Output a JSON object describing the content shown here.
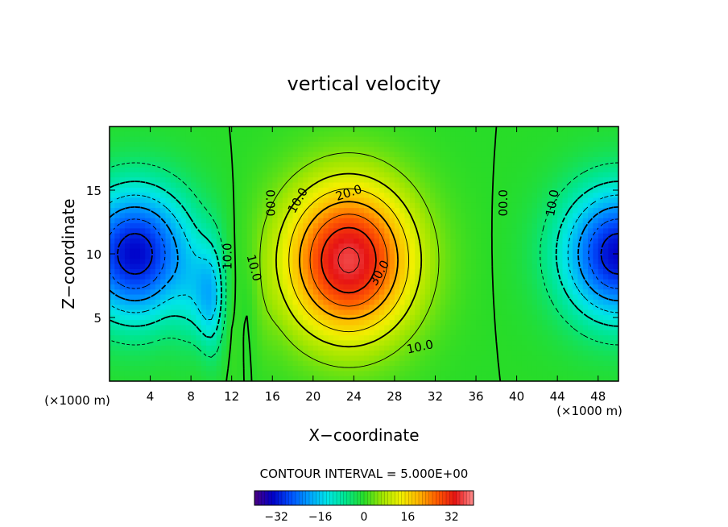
{
  "chart_data": {
    "type": "heatmap",
    "title": "vertical velocity",
    "xlabel": "X−coordinate",
    "ylabel": "Z−coordinate",
    "x_unit_left": "(×1000 m)",
    "x_unit_right": "(×1000 m)",
    "xlim": [
      0,
      50
    ],
    "ylim": [
      0,
      20
    ],
    "x_ticks": [
      4,
      8,
      12,
      16,
      20,
      24,
      28,
      32,
      36,
      40,
      44,
      48
    ],
    "y_ticks": [
      5,
      10,
      15
    ],
    "contour_interval_text": "CONTOUR INTERVAL = 5.000E+00",
    "colorbar": {
      "range": [
        -40,
        40
      ],
      "ticks": [
        -32,
        -16,
        0,
        16,
        32
      ],
      "colors": [
        "#4b0082",
        "#0000c8",
        "#0050ff",
        "#00a0ff",
        "#00e6e6",
        "#00e68c",
        "#28dc28",
        "#a0e600",
        "#f0f000",
        "#ffb400",
        "#ff5a00",
        "#e61414",
        "#ff8c8c"
      ]
    },
    "features": [
      {
        "kind": "updraft",
        "x": 23.5,
        "z": 9.5,
        "peak": 36
      },
      {
        "kind": "downdraft",
        "x": 2.5,
        "z": 10,
        "peak": -33
      },
      {
        "kind": "downdraft",
        "x": 50,
        "z": 10,
        "peak": -33
      },
      {
        "kind": "downdraft",
        "x": 9.5,
        "z": 6.5,
        "peak": -14
      }
    ],
    "contour_labels": [
      {
        "text": "0.00",
        "x": 15.8,
        "z": 14,
        "angle": 90
      },
      {
        "text": "10.0",
        "x": 18.5,
        "z": 14.2,
        "angle": -60
      },
      {
        "text": "20.0",
        "x": 23.5,
        "z": 14.8,
        "angle": -18
      },
      {
        "text": "30.0",
        "x": 26.5,
        "z": 8.5,
        "angle": -60
      },
      {
        "text": "10.0",
        "x": 30.5,
        "z": 2.7,
        "angle": -12
      },
      {
        "text": "00.0",
        "x": 38.7,
        "z": 14,
        "angle": -90
      },
      {
        "text": "10.0",
        "x": 43.5,
        "z": 14,
        "angle": -80
      },
      {
        "text": "10.0",
        "x": 11.6,
        "z": 9.8,
        "angle": -90
      },
      {
        "text": "10.0",
        "x": 14.2,
        "z": 8.9,
        "angle": 75
      }
    ]
  }
}
